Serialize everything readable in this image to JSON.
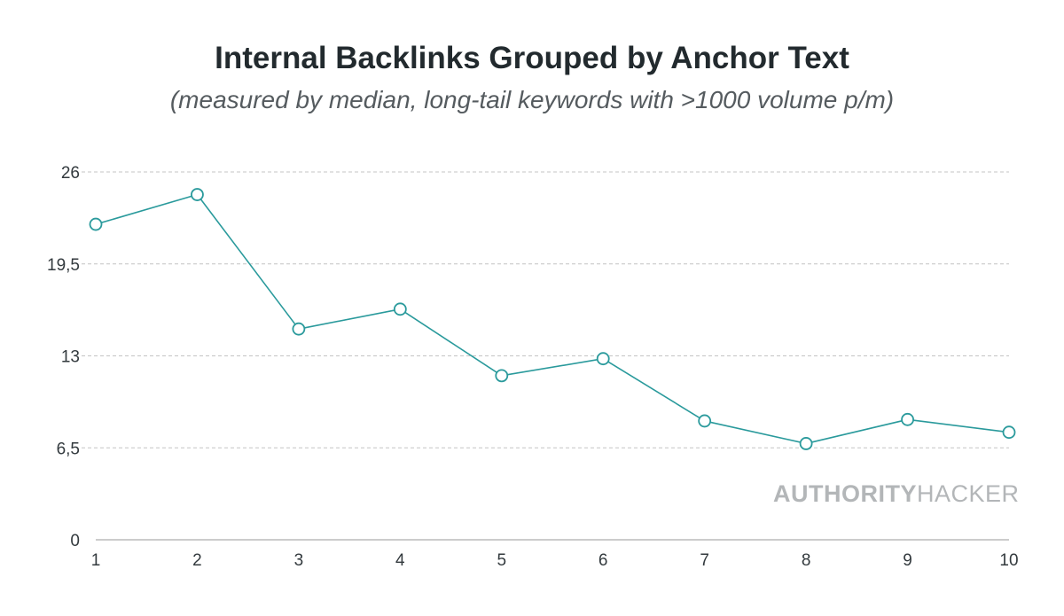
{
  "chart_data": {
    "type": "line",
    "title": "Internal Backlinks Grouped by Anchor Text",
    "subtitle": "(measured by median, long-tail keywords with >1000 volume p/m)",
    "xlabel": "",
    "ylabel": "",
    "x": [
      1,
      2,
      3,
      4,
      5,
      6,
      7,
      8,
      9,
      10
    ],
    "x_tick_labels": [
      "1",
      "2",
      "3",
      "4",
      "5",
      "6",
      "7",
      "8",
      "9",
      "10"
    ],
    "series": [
      {
        "values": [
          22.3,
          24.4,
          14.9,
          16.3,
          11.6,
          12.8,
          8.4,
          6.8,
          8.5,
          7.6
        ]
      }
    ],
    "ylim": [
      0,
      26
    ],
    "y_ticks": [
      0,
      6.5,
      13,
      19.5,
      26
    ],
    "y_tick_labels": [
      "0",
      "6,5",
      "13",
      "19,5",
      "26"
    ],
    "grid": true,
    "legend": "none",
    "colors": {
      "line": "#2a9a9c",
      "marker_fill": "#ffffff",
      "grid": "#c4c4c4",
      "axis": "#999999"
    }
  },
  "watermark": {
    "bold": "AUTHORITY",
    "regular": "HACKER"
  }
}
